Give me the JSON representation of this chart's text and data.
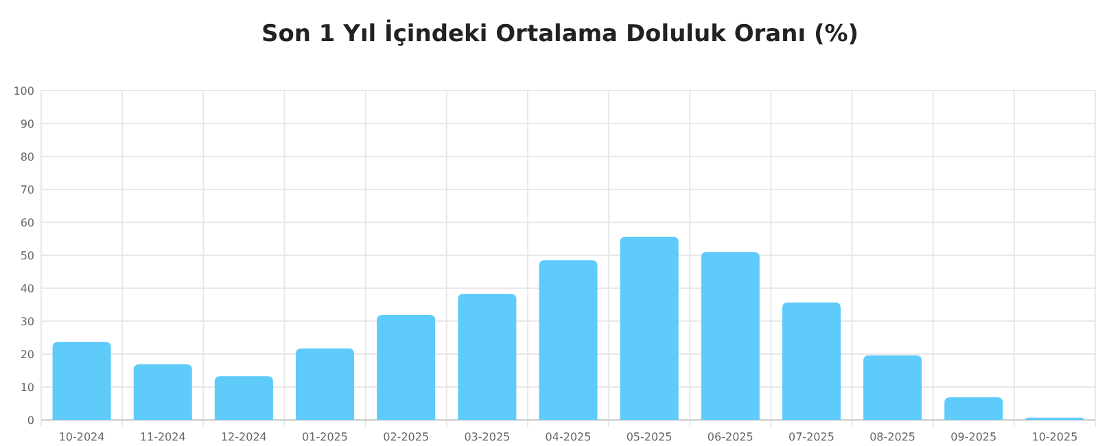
{
  "chart_data": {
    "type": "bar",
    "title": "Son 1 Yıl İçindeki Ortalama Doluluk Oranı (%)",
    "categories": [
      "10-2024",
      "11-2024",
      "12-2024",
      "01-2025",
      "02-2025",
      "03-2025",
      "04-2025",
      "05-2025",
      "06-2025",
      "07-2025",
      "08-2025",
      "09-2025",
      "10-2025"
    ],
    "values": [
      23.7,
      16.9,
      13.3,
      21.7,
      31.9,
      38.3,
      48.5,
      55.6,
      51,
      35.7,
      19.6,
      6.9,
      0.7
    ],
    "color": "#5ecbfb",
    "ylim": [
      0,
      100
    ],
    "yticks": [
      0,
      10,
      20,
      30,
      40,
      50,
      60,
      70,
      80,
      90,
      100
    ],
    "grid": true
  }
}
